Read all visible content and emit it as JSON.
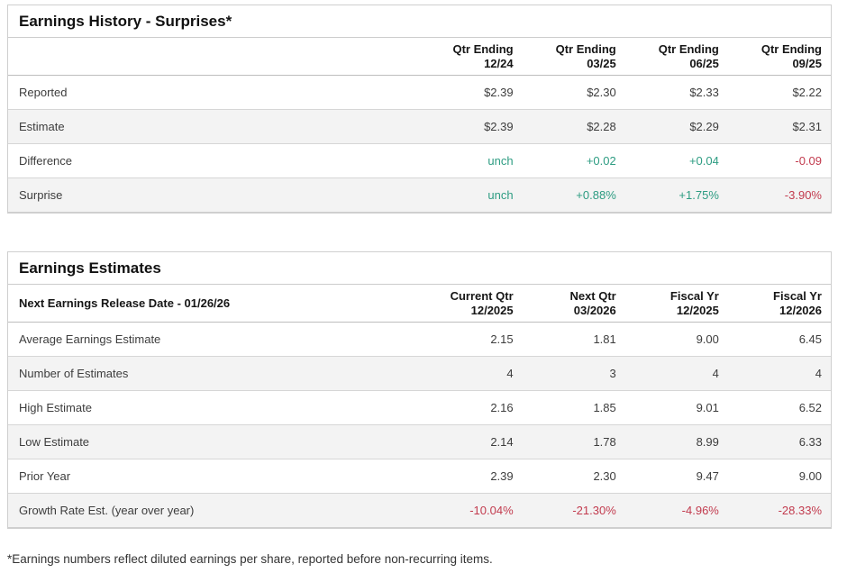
{
  "colors": {
    "positive": "#2d9c82",
    "negative": "#c23b4e",
    "stripe": "#f3f3f3",
    "border": "#cfcfcf"
  },
  "history": {
    "title": "Earnings History - Surprises*",
    "label_header": "",
    "columns": [
      {
        "line1": "Qtr Ending",
        "line2": "12/24"
      },
      {
        "line1": "Qtr Ending",
        "line2": "03/25"
      },
      {
        "line1": "Qtr Ending",
        "line2": "06/25"
      },
      {
        "line1": "Qtr Ending",
        "line2": "09/25"
      }
    ],
    "rows": [
      {
        "label": "Reported",
        "values": [
          "$2.39",
          "$2.30",
          "$2.33",
          "$2.22"
        ],
        "tones": [
          "",
          "",
          "",
          ""
        ]
      },
      {
        "label": "Estimate",
        "values": [
          "$2.39",
          "$2.28",
          "$2.29",
          "$2.31"
        ],
        "tones": [
          "",
          "",
          "",
          ""
        ]
      },
      {
        "label": "Difference",
        "values": [
          "unch",
          "+0.02",
          "+0.04",
          "-0.09"
        ],
        "tones": [
          "pos",
          "pos",
          "pos",
          "neg"
        ]
      },
      {
        "label": "Surprise",
        "values": [
          "unch",
          "+0.88%",
          "+1.75%",
          "-3.90%"
        ],
        "tones": [
          "pos",
          "pos",
          "pos",
          "neg"
        ]
      }
    ]
  },
  "estimates": {
    "title": "Earnings Estimates",
    "release_label": "Next Earnings Release Date - 01/26/26",
    "columns": [
      {
        "line1": "Current Qtr",
        "line2": "12/2025"
      },
      {
        "line1": "Next Qtr",
        "line2": "03/2026"
      },
      {
        "line1": "Fiscal Yr",
        "line2": "12/2025"
      },
      {
        "line1": "Fiscal Yr",
        "line2": "12/2026"
      }
    ],
    "rows": [
      {
        "label": "Average Earnings Estimate",
        "values": [
          "2.15",
          "1.81",
          "9.00",
          "6.45"
        ],
        "tones": [
          "",
          "",
          "",
          ""
        ]
      },
      {
        "label": "Number of Estimates",
        "values": [
          "4",
          "3",
          "4",
          "4"
        ],
        "tones": [
          "",
          "",
          "",
          ""
        ]
      },
      {
        "label": "High Estimate",
        "values": [
          "2.16",
          "1.85",
          "9.01",
          "6.52"
        ],
        "tones": [
          "",
          "",
          "",
          ""
        ]
      },
      {
        "label": "Low Estimate",
        "values": [
          "2.14",
          "1.78",
          "8.99",
          "6.33"
        ],
        "tones": [
          "",
          "",
          "",
          ""
        ]
      },
      {
        "label": "Prior Year",
        "values": [
          "2.39",
          "2.30",
          "9.47",
          "9.00"
        ],
        "tones": [
          "",
          "",
          "",
          ""
        ]
      },
      {
        "label": "Growth Rate Est. (year over year)",
        "values": [
          "-10.04%",
          "-21.30%",
          "-4.96%",
          "-28.33%"
        ],
        "tones": [
          "neg",
          "neg",
          "neg",
          "neg"
        ]
      }
    ]
  },
  "footnote": "*Earnings numbers reflect diluted earnings per share, reported before non-recurring items."
}
